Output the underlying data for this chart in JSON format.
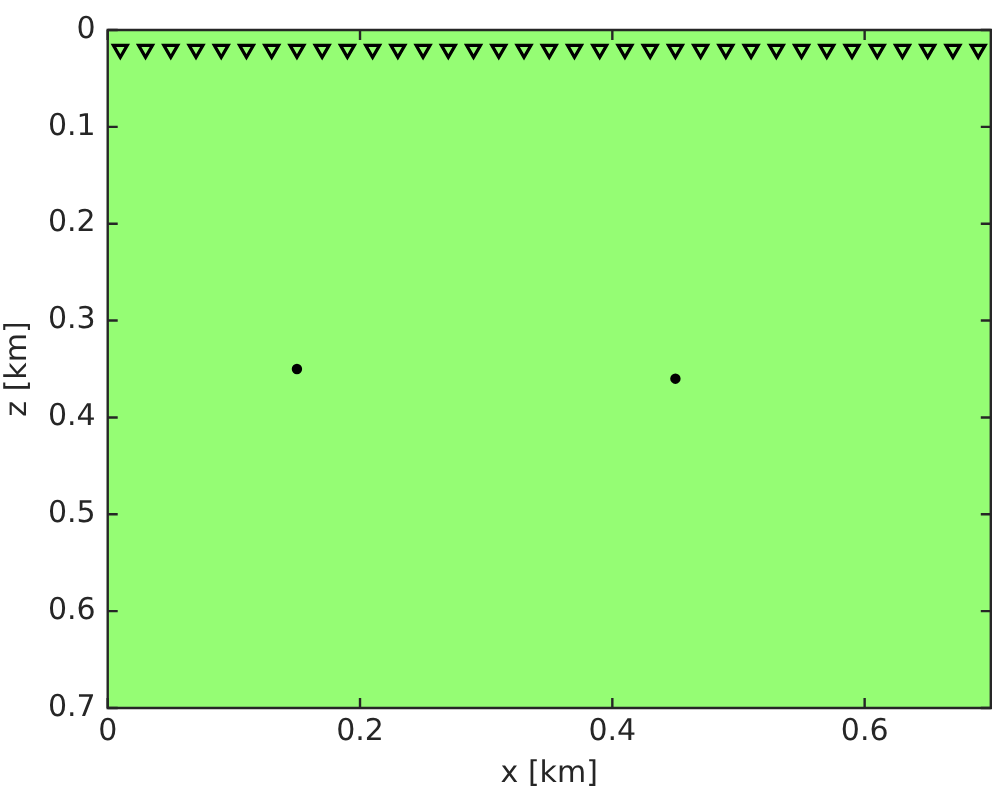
{
  "chart_data": {
    "type": "scatter",
    "xlabel": "x [km]",
    "ylabel": "z [km]",
    "xlim": [
      0,
      0.7
    ],
    "xticks": [
      0,
      0.2,
      0.4,
      0.6
    ],
    "ylim": [
      0.7,
      0
    ],
    "yticks": [
      0,
      0.1,
      0.2,
      0.3,
      0.4,
      0.5,
      0.6,
      0.7
    ],
    "grid": false,
    "legend": false,
    "series": [
      {
        "x": [
          0.01,
          0.03,
          0.05,
          0.07,
          0.09,
          0.11,
          0.13,
          0.15,
          0.17,
          0.19,
          0.21,
          0.23,
          0.25,
          0.27,
          0.29,
          0.31,
          0.33,
          0.35,
          0.37,
          0.39,
          0.41,
          0.43,
          0.45,
          0.47,
          0.49,
          0.51,
          0.53,
          0.55,
          0.57,
          0.59,
          0.61,
          0.63,
          0.65,
          0.67,
          0.69
        ],
        "values": [
          0.02,
          0.02,
          0.02,
          0.02,
          0.02,
          0.02,
          0.02,
          0.02,
          0.02,
          0.02,
          0.02,
          0.02,
          0.02,
          0.02,
          0.02,
          0.02,
          0.02,
          0.02,
          0.02,
          0.02,
          0.02,
          0.02,
          0.02,
          0.02,
          0.02,
          0.02,
          0.02,
          0.02,
          0.02,
          0.02,
          0.02,
          0.02,
          0.02,
          0.02,
          0.02
        ],
        "color": "#000000",
        "marker": "triangle"
      },
      {
        "x": [
          0.15,
          0.45
        ],
        "values": [
          0.35,
          0.36
        ],
        "color": "#000000",
        "marker": "circle"
      }
    ]
  }
}
